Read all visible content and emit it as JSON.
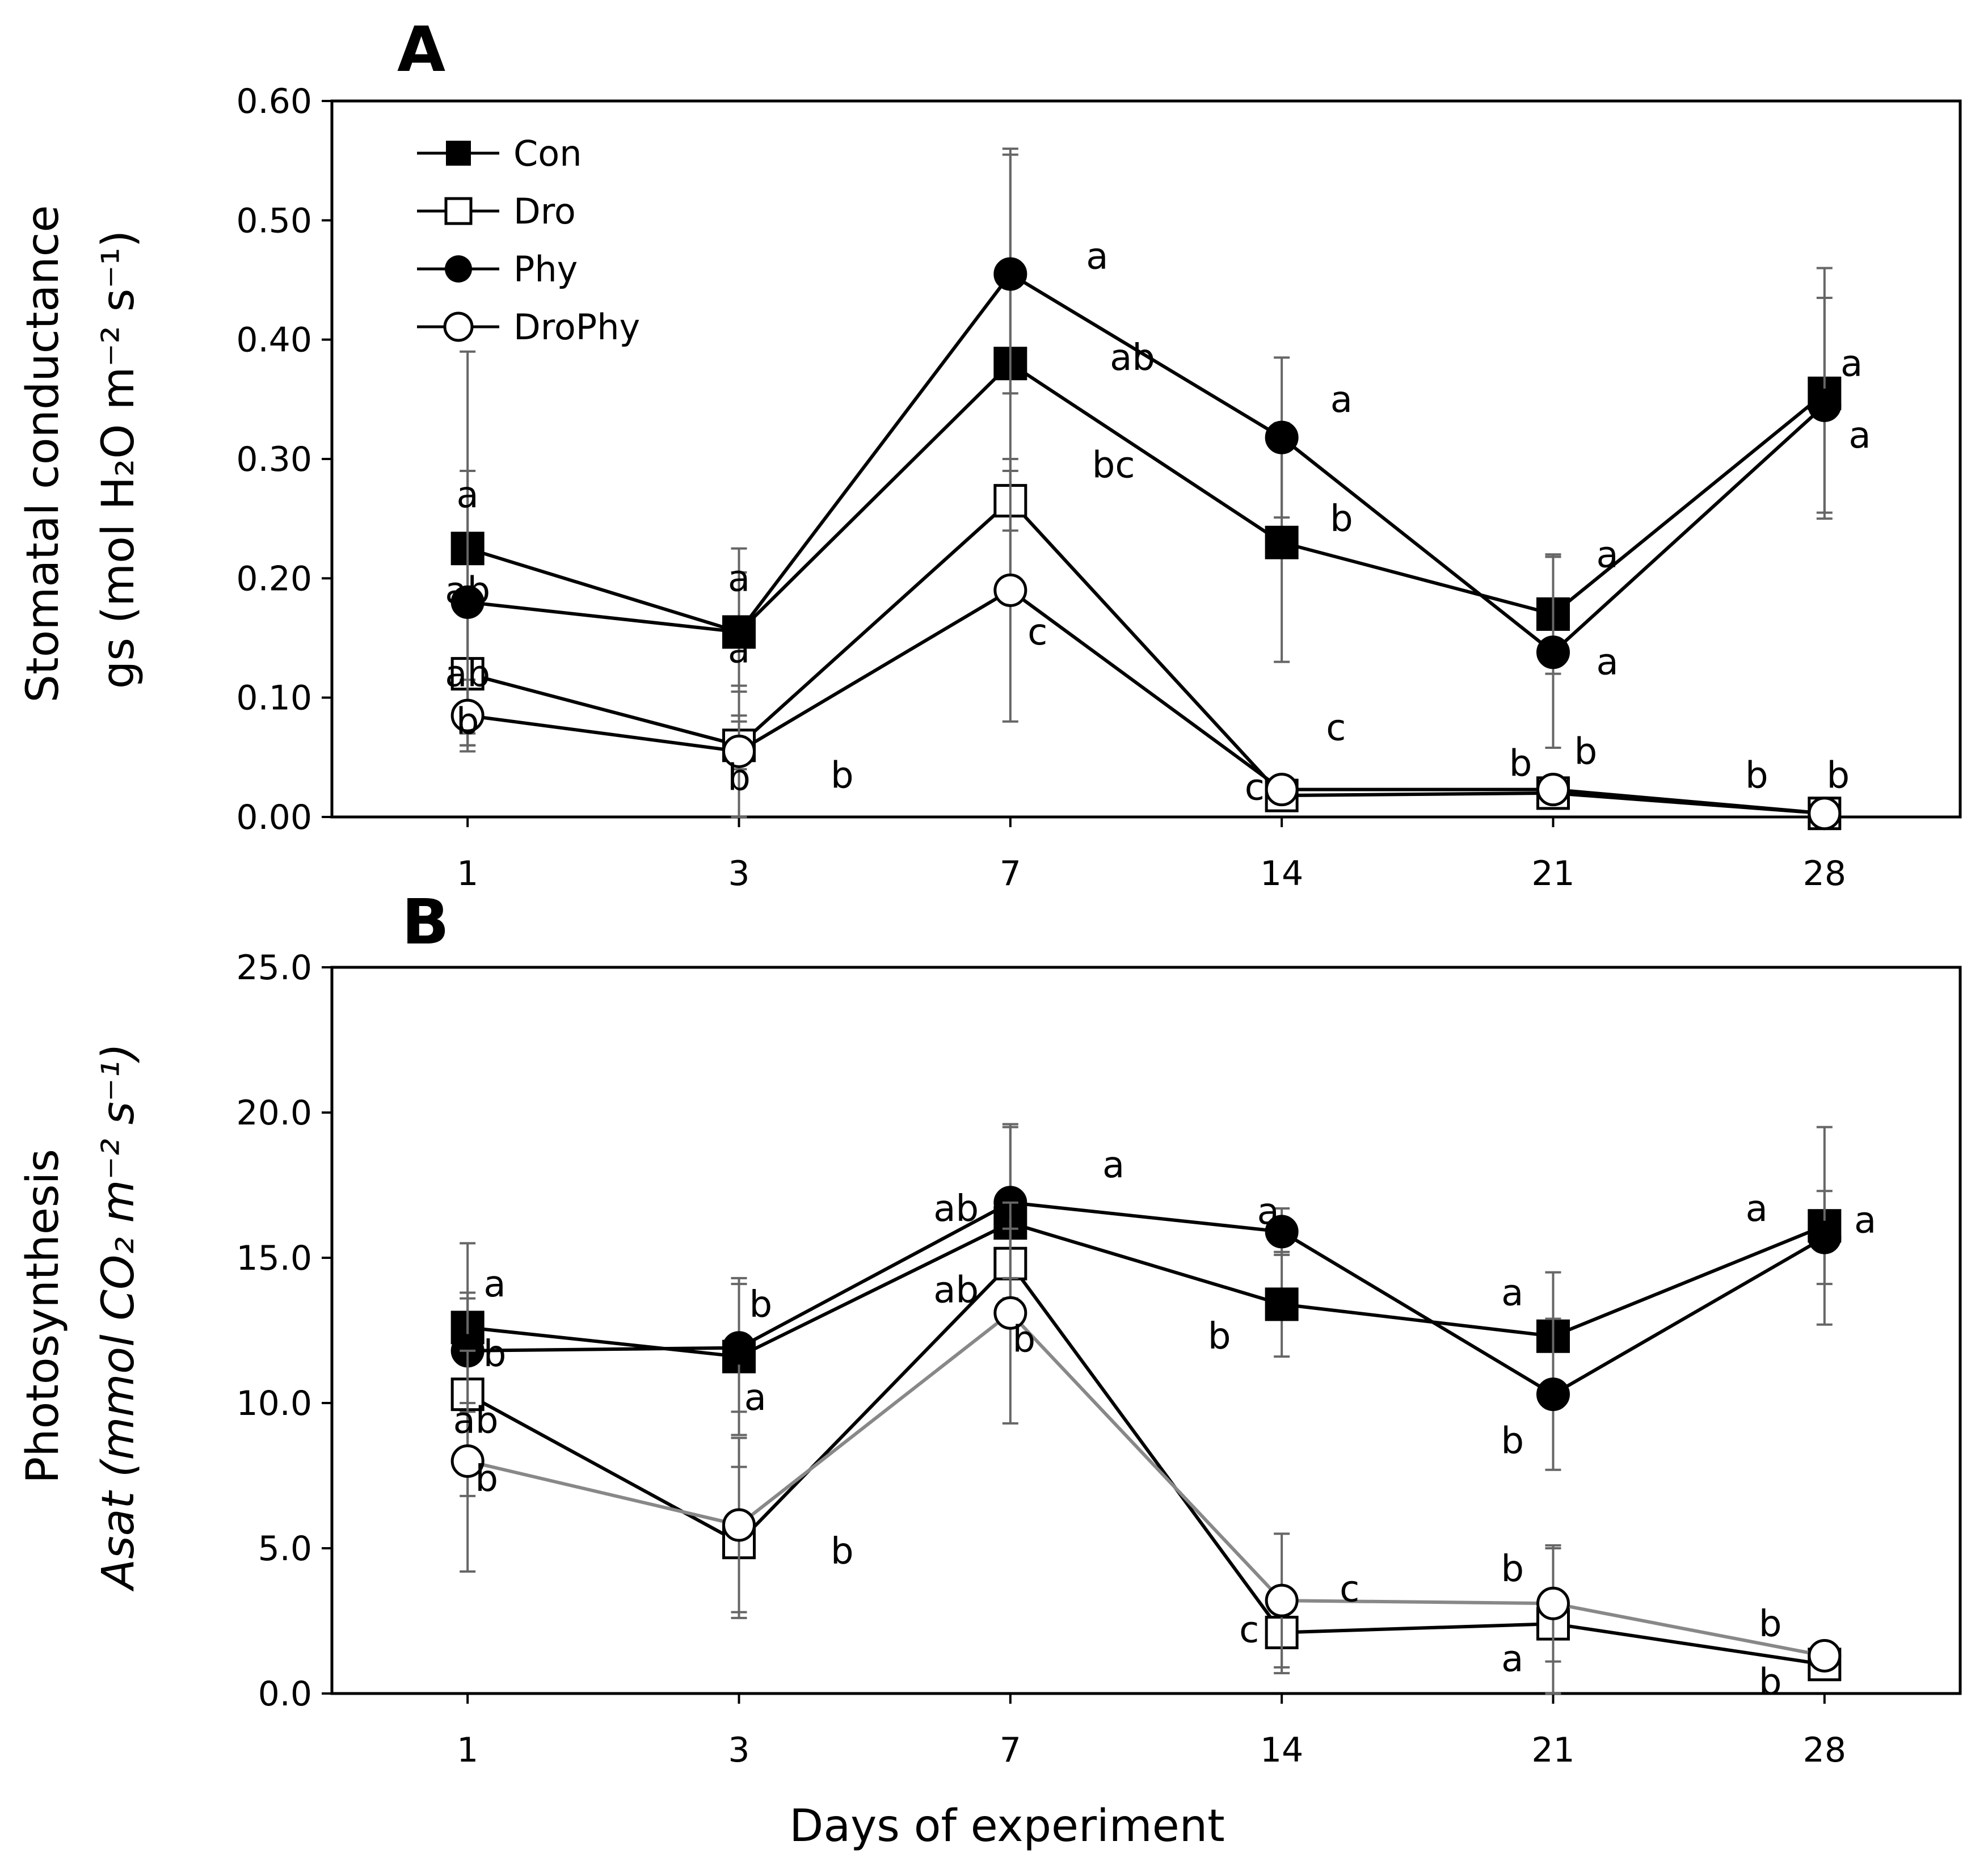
{
  "chart_data": [
    {
      "panel": "A",
      "type": "line",
      "xlabel": "",
      "ylabel_main": "Stomatal conductance",
      "ylabel_sub": "gs (mol H₂O m⁻² s⁻¹)",
      "categories": [
        "1",
        "3",
        "7",
        "14",
        "21",
        "28"
      ],
      "ylim": [
        0,
        0.6
      ],
      "yticks": [
        "0.00",
        "0.10",
        "0.20",
        "0.30",
        "0.40",
        "0.50",
        "0.60"
      ],
      "series": [
        {
          "name": "Con",
          "values": [
            0.225,
            0.155,
            0.38,
            0.23,
            0.17,
            0.355
          ],
          "err": [
            0.165,
            0.05,
            0.18,
            0.1,
            0.05,
            0.105
          ]
        },
        {
          "name": "Dro",
          "values": [
            0.12,
            0.06,
            0.265,
            0.018,
            0.02,
            0.003
          ],
          "err": [
            0.06,
            0.02,
            0.025,
            0.012,
            0.008,
            0.002
          ]
        },
        {
          "name": "Phy",
          "values": [
            0.18,
            0.155,
            0.455,
            0.318,
            0.138,
            0.345
          ],
          "err": [
            0.11,
            0.07,
            0.1,
            0.067,
            0.08,
            0.09
          ]
        },
        {
          "name": "DroPhy",
          "values": [
            0.085,
            0.055,
            0.19,
            0.023,
            0.023,
            0.003
          ],
          "err": [
            0.03,
            0.055,
            0.11,
            0.01,
            0.008,
            0.002
          ]
        }
      ],
      "annotations": [
        {
          "text": "a",
          "x": 1,
          "y": 0.27
        },
        {
          "text": "ab",
          "x": 1,
          "y": 0.19
        },
        {
          "text": "ab",
          "x": 1,
          "y": 0.12
        },
        {
          "text": "b",
          "x": 1,
          "y": 0.08
        },
        {
          "text": "a",
          "x": 2,
          "y": 0.2
        },
        {
          "text": "a",
          "x": 2,
          "y": 0.14
        },
        {
          "text": "b",
          "x": 2,
          "y": 0.033
        },
        {
          "text": "b",
          "x": 2.38,
          "y": 0.035
        },
        {
          "text": "a",
          "x": 3.32,
          "y": 0.47
        },
        {
          "text": "ab",
          "x": 3.45,
          "y": 0.385
        },
        {
          "text": "bc",
          "x": 3.38,
          "y": 0.295
        },
        {
          "text": "c",
          "x": 3.1,
          "y": 0.155
        },
        {
          "text": "a",
          "x": 4.22,
          "y": 0.35
        },
        {
          "text": "b",
          "x": 4.22,
          "y": 0.25
        },
        {
          "text": "c",
          "x": 4.2,
          "y": 0.075
        },
        {
          "text": "c",
          "x": 3.9,
          "y": 0.025
        },
        {
          "text": "a",
          "x": 5.2,
          "y": 0.22
        },
        {
          "text": "a",
          "x": 5.2,
          "y": 0.13
        },
        {
          "text": "b",
          "x": 4.88,
          "y": 0.045
        },
        {
          "text": "b",
          "x": 5.12,
          "y": 0.055
        },
        {
          "text": "a",
          "x": 6.1,
          "y": 0.38
        },
        {
          "text": "a",
          "x": 6.13,
          "y": 0.32
        },
        {
          "text": "b",
          "x": 5.75,
          "y": 0.035
        },
        {
          "text": "b",
          "x": 6.05,
          "y": 0.035
        }
      ]
    },
    {
      "panel": "B",
      "type": "line",
      "xlabel": "Days of experiment",
      "ylabel_main": "Photosynthesis",
      "ylabel_sub": "Asat (mmol CO₂ m⁻² s⁻¹)",
      "categories": [
        "1",
        "3",
        "7",
        "14",
        "21",
        "28"
      ],
      "ylim": [
        0,
        25
      ],
      "yticks": [
        "0.0",
        "5.0",
        "10.0",
        "15.0",
        "20.0",
        "25.0"
      ],
      "series": [
        {
          "name": "Con",
          "values": [
            12.6,
            11.6,
            16.2,
            13.4,
            12.3,
            16.1
          ],
          "err": [
            2.9,
            2.7,
            3.4,
            1.8,
            2.2,
            3.4
          ]
        },
        {
          "name": "Dro",
          "values": [
            10.3,
            5.2,
            14.8,
            2.1,
            2.4,
            1.0
          ],
          "err": [
            3.5,
            2.6,
            1.2,
            1.4,
            2.6,
            0.3
          ]
        },
        {
          "name": "Phy",
          "values": [
            11.8,
            11.9,
            16.9,
            15.9,
            10.3,
            15.7
          ],
          "err": [
            1.8,
            2.2,
            2.6,
            0.8,
            2.6,
            1.6
          ]
        },
        {
          "name": "DroPhy",
          "values": [
            8.0,
            5.8,
            13.1,
            3.2,
            3.1,
            1.3
          ],
          "err": [
            3.8,
            3.0,
            3.8,
            2.3,
            2.0,
            0.3
          ]
        }
      ],
      "annotations": [
        {
          "text": "a",
          "x": 1.1,
          "y": 14.1
        },
        {
          "text": "b",
          "x": 1.1,
          "y": 11.7
        },
        {
          "text": "ab",
          "x": 1.03,
          "y": 9.4
        },
        {
          "text": "b",
          "x": 1.07,
          "y": 7.4
        },
        {
          "text": "b",
          "x": 2.08,
          "y": 13.4
        },
        {
          "text": "a",
          "x": 2.06,
          "y": 10.2
        },
        {
          "text": "b",
          "x": 2.38,
          "y": 4.9
        },
        {
          "text": "a",
          "x": 3.38,
          "y": 18.2
        },
        {
          "text": "ab",
          "x": 2.8,
          "y": 16.7
        },
        {
          "text": "ab",
          "x": 2.8,
          "y": 13.9
        },
        {
          "text": "b",
          "x": 3.05,
          "y": 12.2
        },
        {
          "text": "a",
          "x": 3.95,
          "y": 16.6
        },
        {
          "text": "b",
          "x": 3.77,
          "y": 12.3
        },
        {
          "text": "c",
          "x": 4.25,
          "y": 3.6
        },
        {
          "text": "c",
          "x": 3.88,
          "y": 2.2
        },
        {
          "text": "a",
          "x": 4.85,
          "y": 13.8
        },
        {
          "text": "b",
          "x": 4.85,
          "y": 8.7
        },
        {
          "text": "b",
          "x": 4.85,
          "y": 4.3
        },
        {
          "text": "a",
          "x": 4.85,
          "y": 1.2
        },
        {
          "text": "a",
          "x": 5.75,
          "y": 16.7
        },
        {
          "text": "a",
          "x": 6.15,
          "y": 16.3
        },
        {
          "text": "b",
          "x": 5.8,
          "y": 2.4
        },
        {
          "text": "b",
          "x": 5.8,
          "y": 0.4
        }
      ]
    }
  ],
  "panel_labels": {
    "a": "A",
    "b": "B"
  },
  "legend": {
    "con": "Con",
    "dro": "Dro",
    "phy": "Phy",
    "drophy": "DroPhy"
  }
}
